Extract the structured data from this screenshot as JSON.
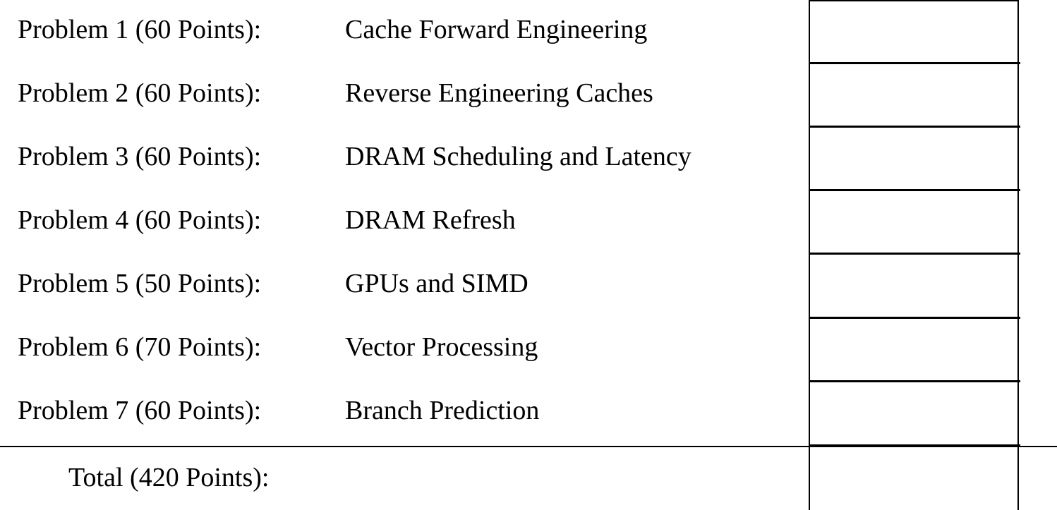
{
  "problems": [
    {
      "label": "Problem 1 (60 Points):",
      "title": "Cache Forward Engineering"
    },
    {
      "label": "Problem 2 (60 Points):",
      "title": "Reverse Engineering Caches"
    },
    {
      "label": "Problem 3 (60 Points):",
      "title": "DRAM Scheduling and Latency"
    },
    {
      "label": "Problem 4 (60 Points):",
      "title": "DRAM Refresh"
    },
    {
      "label": "Problem 5 (50 Points):",
      "title": "GPUs and SIMD"
    },
    {
      "label": "Problem 6 (70 Points):",
      "title": "Vector Processing"
    },
    {
      "label": "Problem 7 (60 Points):",
      "title": "Branch Prediction"
    }
  ],
  "total": {
    "label": "Total (420 Points):"
  }
}
